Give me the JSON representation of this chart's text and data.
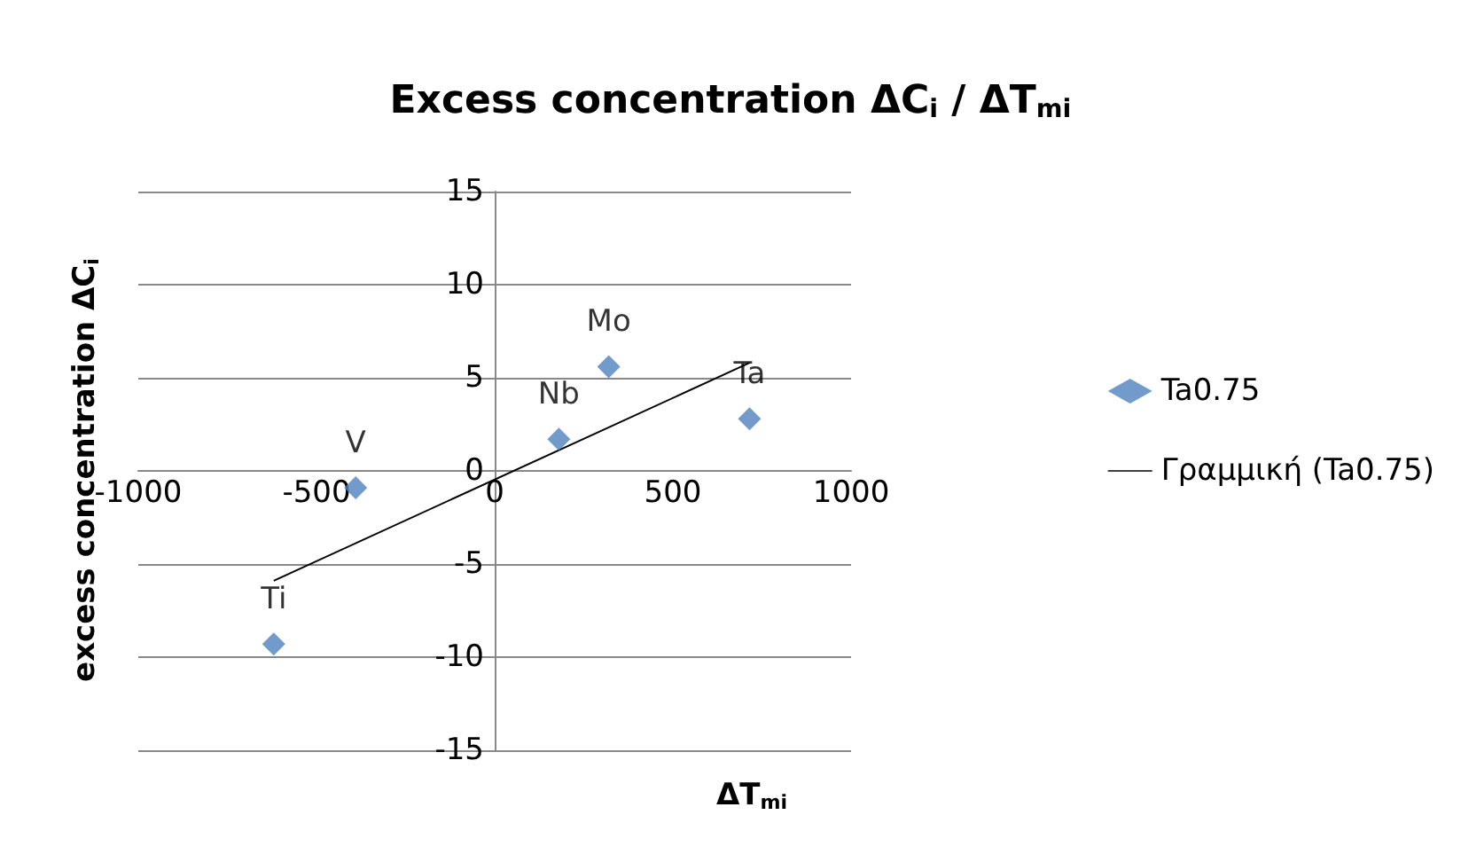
{
  "chart_data": {
    "type": "scatter",
    "title": "Excess concentration ΔC$_{i}$ / ΔT$_{mi}$",
    "xlabel": "ΔT$_{mi}$",
    "ylabel": "excess concentration ΔC$_{i}$",
    "series": [
      {
        "name": "Ta0.75",
        "type": "scatter",
        "color": "#4f81bd",
        "marker": "diamond",
        "x": [
          -620,
          -390,
          180,
          320,
          715
        ],
        "values": [
          -9.3,
          -0.9,
          1.7,
          5.6,
          2.8
        ],
        "value_labels": [
          "Ti",
          "V",
          "Nb",
          "Mo",
          "Ta"
        ]
      },
      {
        "name": "Γραμμική (Ta0.75)",
        "type": "line",
        "color": "#000000",
        "marker": "none",
        "line_style": "solid",
        "x": [
          -620,
          715
        ],
        "values": [
          -5.9,
          5.8
        ]
      }
    ],
    "xlim": [
      -1000,
      1000
    ],
    "xticks": [
      -1000,
      -500,
      0,
      500,
      1000
    ],
    "ylim": [
      -15,
      15
    ],
    "yticks": [
      -15,
      -10,
      -5,
      0,
      5,
      10,
      15
    ],
    "grid": "y",
    "legend": "right"
  }
}
